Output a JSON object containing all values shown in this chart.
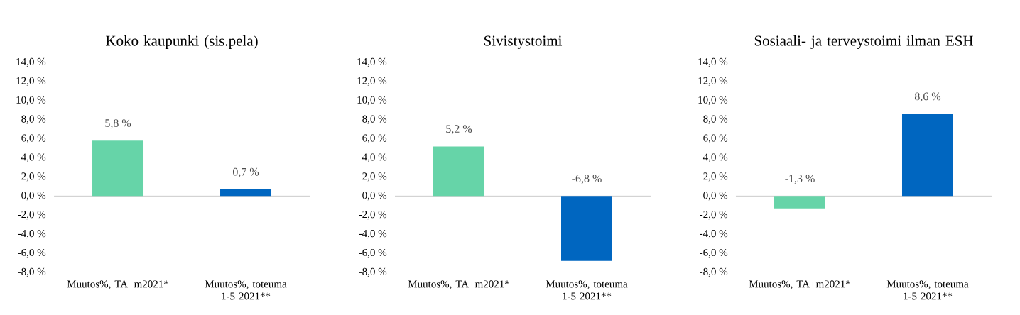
{
  "chart_data": [
    {
      "type": "bar",
      "title": "Koko kaupunki (sis.pela)",
      "categories": [
        "Muutos%, TA+m2021*",
        "Muutos%, toteuma 1-5 2021**"
      ],
      "values": [
        5.8,
        0.7
      ],
      "colors": [
        "#66d4a8",
        "#0066c0"
      ],
      "value_labels": [
        "5,8 %",
        "0,7 %"
      ],
      "ylim": [
        -8,
        14
      ],
      "yticks": [
        {
          "value": -8,
          "label": "-8,0 %"
        },
        {
          "value": -6,
          "label": "-6,0 %"
        },
        {
          "value": -4,
          "label": "-4,0 %"
        },
        {
          "value": -2,
          "label": "-2,0 %"
        },
        {
          "value": 0,
          "label": "0,0 %"
        },
        {
          "value": 2,
          "label": "2,0 %"
        },
        {
          "value": 4,
          "label": "4,0 %"
        },
        {
          "value": 6,
          "label": "6,0 %"
        },
        {
          "value": 8,
          "label": "8,0 %"
        },
        {
          "value": 10,
          "label": "10,0 %"
        },
        {
          "value": 12,
          "label": "12,0 %"
        },
        {
          "value": 14,
          "label": "14,0 %"
        }
      ]
    },
    {
      "type": "bar",
      "title": "Sivistystoimi",
      "categories": [
        "Muutos%, TA+m2021*",
        "Muutos%, toteuma 1-5 2021**"
      ],
      "values": [
        5.2,
        -6.8
      ],
      "colors": [
        "#66d4a8",
        "#0066c0"
      ],
      "value_labels": [
        "5,2 %",
        "-6,8 %"
      ],
      "ylim": [
        -8,
        14
      ],
      "yticks": [
        {
          "value": -8,
          "label": "-8,0 %"
        },
        {
          "value": -6,
          "label": "-6,0 %"
        },
        {
          "value": -4,
          "label": "-4,0 %"
        },
        {
          "value": -2,
          "label": "-2,0 %"
        },
        {
          "value": 0,
          "label": "0,0 %"
        },
        {
          "value": 2,
          "label": "2,0 %"
        },
        {
          "value": 4,
          "label": "4,0 %"
        },
        {
          "value": 6,
          "label": "6,0 %"
        },
        {
          "value": 8,
          "label": "8,0 %"
        },
        {
          "value": 10,
          "label": "10,0 %"
        },
        {
          "value": 12,
          "label": "12,0 %"
        },
        {
          "value": 14,
          "label": "14,0 %"
        }
      ]
    },
    {
      "type": "bar",
      "title": "Sosiaali- ja terveystoimi ilman ESH",
      "categories": [
        "Muutos%, TA+m2021*",
        "Muutos%, toteuma 1-5 2021**"
      ],
      "values": [
        -1.3,
        8.6
      ],
      "colors": [
        "#66d4a8",
        "#0066c0"
      ],
      "value_labels": [
        "-1,3 %",
        "8,6 %"
      ],
      "ylim": [
        -8,
        14
      ],
      "yticks": [
        {
          "value": -8,
          "label": "-8,0 %"
        },
        {
          "value": -6,
          "label": "-6,0 %"
        },
        {
          "value": -4,
          "label": "-4,0 %"
        },
        {
          "value": -2,
          "label": "-2,0 %"
        },
        {
          "value": 0,
          "label": "0,0 %"
        },
        {
          "value": 2,
          "label": "2,0 %"
        },
        {
          "value": 4,
          "label": "4,0 %"
        },
        {
          "value": 6,
          "label": "6,0 %"
        },
        {
          "value": 8,
          "label": "8,0 %"
        },
        {
          "value": 10,
          "label": "10,0 %"
        },
        {
          "value": 12,
          "label": "12,0 %"
        },
        {
          "value": 14,
          "label": "14,0 %"
        }
      ]
    }
  ]
}
